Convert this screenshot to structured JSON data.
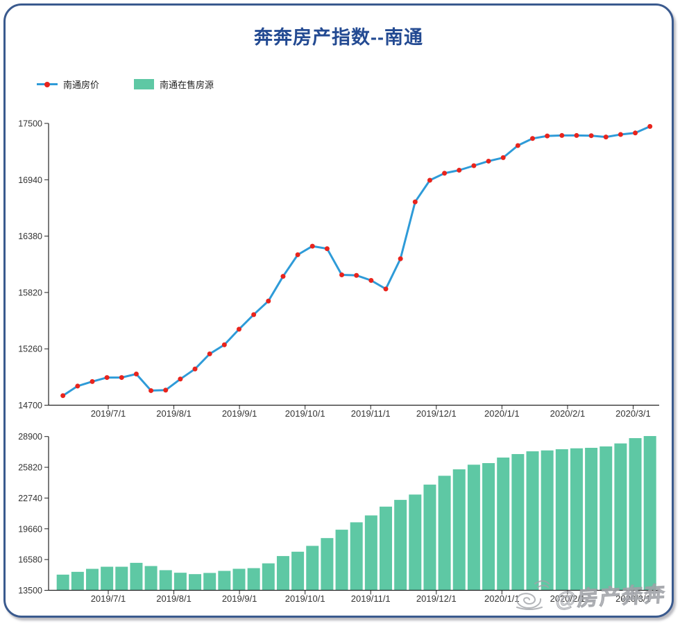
{
  "title": "奔奔房产指数--南通",
  "legend": [
    {
      "label": "南通房价",
      "type": "line"
    },
    {
      "label": "南通在售房源",
      "type": "bar"
    }
  ],
  "watermark": {
    "handle": "@房产奔奔"
  },
  "colors": {
    "line": "#2e9bd8",
    "marker": "#e8241d",
    "bar": "#5ec8a4",
    "title": "#234a92",
    "frame_border": "#3a5a8e",
    "axis": "#222222",
    "tick_text": "#333333",
    "watermark": "#b9bcc2"
  },
  "chart_data": [
    {
      "type": "line",
      "series_name": "南通房价",
      "x_frequency": "weekly",
      "x_tick_labels": [
        "2019/7/1",
        "2019/8/1",
        "2019/9/1",
        "2019/10/1",
        "2019/11/1",
        "2019/12/1",
        "2020/1/1",
        "2020/2/1",
        "2020/3/1"
      ],
      "y_ticks": [
        14700,
        15260,
        15820,
        16380,
        16940,
        17500
      ],
      "ylim": [
        14700,
        17500
      ],
      "grid": false,
      "legend_position": "top-left",
      "values": [
        14795,
        14890,
        14935,
        14975,
        14975,
        15010,
        14845,
        14850,
        14960,
        15060,
        15210,
        15300,
        15455,
        15600,
        15735,
        15980,
        16195,
        16280,
        16255,
        15995,
        15990,
        15940,
        15855,
        16155,
        16720,
        16935,
        17005,
        17035,
        17080,
        17125,
        17160,
        17280,
        17350,
        17375,
        17380,
        17380,
        17378,
        17365,
        17390,
        17405,
        17470
      ]
    },
    {
      "type": "bar",
      "series_name": "南通在售房源",
      "x_frequency": "weekly",
      "x_tick_labels": [
        "2019/7/1",
        "2019/8/1",
        "2019/9/1",
        "2019/10/1",
        "2019/11/1",
        "2019/12/1",
        "2020/1/1",
        "2020/2/1",
        "2020/3/1"
      ],
      "y_ticks": [
        13500,
        16580,
        19660,
        22740,
        25820,
        28900
      ],
      "ylim": [
        13500,
        28900
      ],
      "grid": false,
      "values": [
        15070,
        15350,
        15650,
        15860,
        15860,
        16250,
        15930,
        15515,
        15260,
        15120,
        15240,
        15445,
        15655,
        15720,
        16200,
        16930,
        17365,
        17950,
        18730,
        19570,
        20310,
        21000,
        21880,
        22555,
        23090,
        24085,
        24970,
        25615,
        26080,
        26240,
        26795,
        27145,
        27420,
        27510,
        27630,
        27720,
        27770,
        27910,
        28210,
        28740,
        28950
      ]
    }
  ]
}
